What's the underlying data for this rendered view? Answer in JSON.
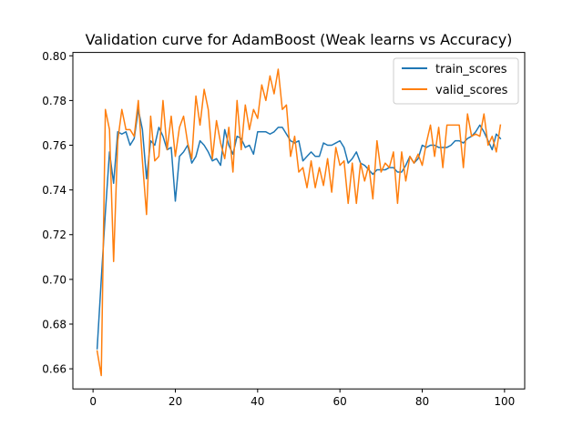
{
  "chart_data": {
    "type": "line",
    "title": "Validation curve for AdamBoost (Weak learns vs Accuracy)",
    "xlabel": "",
    "ylabel": "",
    "xlim": [
      -4.9,
      104.9
    ],
    "ylim": [
      0.651,
      0.8015
    ],
    "xticks": [
      0,
      20,
      40,
      60,
      80,
      100
    ],
    "yticks": [
      0.66,
      0.68,
      0.7,
      0.72,
      0.74,
      0.76,
      0.78,
      0.8
    ],
    "ytick_labels": [
      "0.66",
      "0.68",
      "0.70",
      "0.72",
      "0.74",
      "0.76",
      "0.78",
      "0.80"
    ],
    "grid": false,
    "legend_position": "top-right",
    "x": [
      1,
      2,
      3,
      4,
      5,
      6,
      7,
      8,
      9,
      10,
      11,
      12,
      13,
      14,
      15,
      16,
      17,
      18,
      19,
      20,
      21,
      22,
      23,
      24,
      25,
      26,
      27,
      28,
      29,
      30,
      31,
      32,
      33,
      34,
      35,
      36,
      37,
      38,
      39,
      40,
      41,
      42,
      43,
      44,
      45,
      46,
      47,
      48,
      49,
      50,
      51,
      52,
      53,
      54,
      55,
      56,
      57,
      58,
      59,
      60,
      61,
      62,
      63,
      64,
      65,
      66,
      67,
      68,
      69,
      70,
      71,
      72,
      73,
      74,
      75,
      76,
      77,
      78,
      79,
      80,
      81,
      82,
      83,
      84,
      85,
      86,
      87,
      88,
      89,
      90,
      91,
      92,
      93,
      94,
      95,
      96,
      97,
      98,
      99
    ],
    "series": [
      {
        "name": "train_scores",
        "color": "#1f77b4",
        "values": [
          0.669,
          0.7,
          0.73,
          0.757,
          0.743,
          0.766,
          0.765,
          0.766,
          0.76,
          0.763,
          0.776,
          0.767,
          0.745,
          0.762,
          0.76,
          0.768,
          0.764,
          0.758,
          0.759,
          0.735,
          0.755,
          0.757,
          0.76,
          0.752,
          0.755,
          0.762,
          0.76,
          0.757,
          0.753,
          0.754,
          0.751,
          0.767,
          0.76,
          0.756,
          0.764,
          0.763,
          0.759,
          0.76,
          0.756,
          0.766,
          0.766,
          0.766,
          0.765,
          0.766,
          0.768,
          0.768,
          0.765,
          0.762,
          0.761,
          0.762,
          0.753,
          0.755,
          0.757,
          0.755,
          0.755,
          0.761,
          0.76,
          0.76,
          0.761,
          0.762,
          0.759,
          0.752,
          0.754,
          0.757,
          0.752,
          0.751,
          0.749,
          0.747,
          0.749,
          0.749,
          0.749,
          0.75,
          0.75,
          0.748,
          0.748,
          0.751,
          0.755,
          0.752,
          0.754,
          0.76,
          0.759,
          0.76,
          0.76,
          0.759,
          0.759,
          0.759,
          0.76,
          0.762,
          0.762,
          0.761,
          0.763,
          0.764,
          0.766,
          0.769,
          0.766,
          0.762,
          0.758,
          0.765,
          0.763
        ]
      },
      {
        "name": "valid_scores",
        "color": "#ff7f0e",
        "values": [
          0.668,
          0.657,
          0.776,
          0.767,
          0.708,
          0.762,
          0.776,
          0.767,
          0.767,
          0.764,
          0.78,
          0.753,
          0.729,
          0.773,
          0.753,
          0.755,
          0.78,
          0.758,
          0.773,
          0.755,
          0.768,
          0.773,
          0.761,
          0.754,
          0.782,
          0.769,
          0.785,
          0.776,
          0.754,
          0.771,
          0.761,
          0.754,
          0.768,
          0.748,
          0.78,
          0.758,
          0.778,
          0.767,
          0.776,
          0.772,
          0.787,
          0.78,
          0.791,
          0.783,
          0.794,
          0.776,
          0.778,
          0.755,
          0.764,
          0.748,
          0.75,
          0.741,
          0.753,
          0.741,
          0.75,
          0.742,
          0.754,
          0.739,
          0.759,
          0.751,
          0.753,
          0.734,
          0.752,
          0.734,
          0.752,
          0.744,
          0.751,
          0.736,
          0.762,
          0.748,
          0.752,
          0.75,
          0.757,
          0.734,
          0.757,
          0.744,
          0.755,
          0.752,
          0.756,
          0.751,
          0.761,
          0.769,
          0.755,
          0.768,
          0.75,
          0.769,
          0.769,
          0.769,
          0.769,
          0.75,
          0.774,
          0.764,
          0.765,
          0.764,
          0.774,
          0.76,
          0.764,
          0.757,
          0.769
        ]
      }
    ]
  }
}
